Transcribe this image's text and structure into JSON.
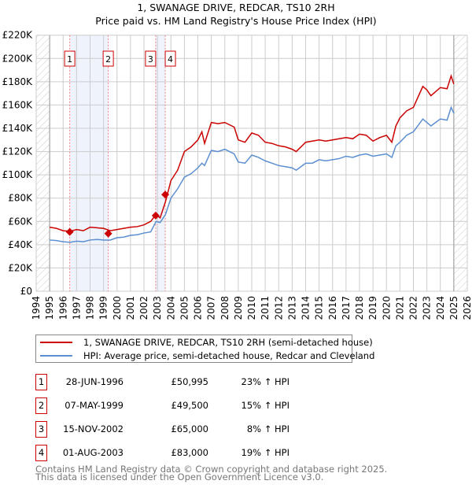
{
  "chart_data": {
    "type": "line",
    "title": "1, SWANAGE DRIVE, REDCAR, TS10 2RH",
    "subtitle": "Price paid vs. HM Land Registry's House Price Index (HPI)",
    "xlim": [
      1994,
      2026
    ],
    "ylim": [
      0,
      220000
    ],
    "x_ticks": [
      "1994",
      "1995",
      "1996",
      "1997",
      "1998",
      "1999",
      "2000",
      "2001",
      "2002",
      "2003",
      "2004",
      "2005",
      "2006",
      "2007",
      "2008",
      "2009",
      "2010",
      "2011",
      "2012",
      "2013",
      "2014",
      "2015",
      "2016",
      "2017",
      "2018",
      "2019",
      "2020",
      "2021",
      "2022",
      "2023",
      "2024",
      "2025",
      "2026"
    ],
    "y_ticks": [
      {
        "v": 0,
        "label": "£0"
      },
      {
        "v": 20000,
        "label": "£20K"
      },
      {
        "v": 40000,
        "label": "£40K"
      },
      {
        "v": 60000,
        "label": "£60K"
      },
      {
        "v": 80000,
        "label": "£80K"
      },
      {
        "v": 100000,
        "label": "£100K"
      },
      {
        "v": 120000,
        "label": "£120K"
      },
      {
        "v": 140000,
        "label": "£140K"
      },
      {
        "v": 160000,
        "label": "£160K"
      },
      {
        "v": 180000,
        "label": "£180K"
      },
      {
        "v": 200000,
        "label": "£200K"
      },
      {
        "v": 220000,
        "label": "£220K"
      }
    ],
    "grid": true,
    "data_range": [
      1995,
      2025
    ],
    "series": [
      {
        "name": "1, SWANAGE DRIVE, REDCAR, TS10 2RH (semi-detached house)",
        "color": "#cc0000",
        "x": [
          1995,
          1995.5,
          1996,
          1996.5,
          1997,
          1997.5,
          1998,
          1998.5,
          1999,
          1999.5,
          2000,
          2000.5,
          2001,
          2001.5,
          2002,
          2002.5,
          2002.9,
          2003.2,
          2003.6,
          2004,
          2004.5,
          2005,
          2005.5,
          2006,
          2006.3,
          2006.5,
          2007,
          2007.5,
          2008,
          2008.7,
          2009,
          2009.5,
          2010,
          2010.5,
          2011,
          2011.5,
          2012,
          2012.5,
          2013,
          2013.3,
          2014,
          2014.5,
          2015,
          2015.5,
          2016,
          2016.5,
          2017,
          2017.5,
          2018,
          2018.5,
          2019,
          2019.5,
          2020,
          2020.4,
          2020.7,
          2021,
          2021.5,
          2022,
          2022.7,
          2023,
          2023.3,
          2024,
          2024.5,
          2024.8,
          2025
        ],
        "y": [
          55000,
          54000,
          52000,
          51500,
          53000,
          52000,
          55000,
          54500,
          54000,
          52000,
          53000,
          54000,
          55000,
          55500,
          57000,
          60000,
          66000,
          63000,
          77000,
          95000,
          104000,
          120000,
          124000,
          130000,
          137000,
          127000,
          145000,
          144000,
          145000,
          141000,
          130000,
          128000,
          136000,
          134000,
          128000,
          127000,
          125000,
          124000,
          122000,
          120000,
          128000,
          129000,
          130000,
          129000,
          130000,
          131000,
          132000,
          131000,
          135000,
          134000,
          129000,
          132000,
          134000,
          128000,
          142000,
          149000,
          155000,
          158000,
          176000,
          173000,
          168000,
          175000,
          174000,
          185000,
          178000
        ]
      },
      {
        "name": "HPI: Average price, semi-detached house, Redcar and Cleveland",
        "color": "#5b8fd0",
        "x": [
          1995,
          1995.5,
          1996,
          1996.5,
          1997,
          1997.5,
          1998,
          1998.5,
          1999,
          1999.5,
          2000,
          2000.5,
          2001,
          2001.5,
          2002,
          2002.5,
          2002.9,
          2003.2,
          2003.6,
          2004,
          2004.5,
          2005,
          2005.5,
          2006,
          2006.3,
          2006.5,
          2007,
          2007.5,
          2008,
          2008.7,
          2009,
          2009.5,
          2010,
          2010.5,
          2011,
          2011.5,
          2012,
          2012.5,
          2013,
          2013.3,
          2014,
          2014.5,
          2015,
          2015.5,
          2016,
          2016.5,
          2017,
          2017.5,
          2018,
          2018.5,
          2019,
          2019.5,
          2020,
          2020.4,
          2020.7,
          2021,
          2021.5,
          2022,
          2022.7,
          2023,
          2023.3,
          2024,
          2024.5,
          2024.8,
          2025
        ],
        "y": [
          44000,
          43500,
          42500,
          42000,
          43000,
          42500,
          44000,
          44500,
          44000,
          44000,
          46000,
          46500,
          48000,
          48500,
          50000,
          51000,
          60000,
          59000,
          66000,
          80000,
          88000,
          98000,
          101000,
          106000,
          110000,
          108000,
          121000,
          120000,
          122000,
          118000,
          111000,
          110000,
          117000,
          115000,
          112000,
          110000,
          108000,
          107000,
          106000,
          104000,
          110000,
          110000,
          113000,
          112000,
          113000,
          114000,
          116000,
          115000,
          117000,
          118000,
          116000,
          117000,
          118000,
          115000,
          125000,
          128000,
          134000,
          137000,
          148000,
          145000,
          142000,
          148000,
          147000,
          158000,
          153000
        ]
      }
    ],
    "sales": [
      {
        "n": "1",
        "x": 1996.49,
        "price": 50995
      },
      {
        "n": "2",
        "x": 1999.35,
        "price": 49500
      },
      {
        "n": "3",
        "x": 2002.87,
        "price": 65000
      },
      {
        "n": "4",
        "x": 2003.58,
        "price": 83000
      }
    ],
    "shaded_ranges": [
      [
        1996.49,
        1999.35
      ],
      [
        2002.87,
        2003.58
      ]
    ]
  },
  "legend": {
    "red_label": "1, SWANAGE DRIVE, REDCAR, TS10 2RH (semi-detached house)",
    "blue_label": "HPI: Average price, semi-detached house, Redcar and Cleveland"
  },
  "transactions": [
    {
      "n": "1",
      "date": "28-JUN-1996",
      "price": "£50,995",
      "hpi": "23% ↑ HPI"
    },
    {
      "n": "2",
      "date": "07-MAY-1999",
      "price": "£49,500",
      "hpi": "15% ↑ HPI"
    },
    {
      "n": "3",
      "date": "15-NOV-2002",
      "price": "£65,000",
      "hpi": "8% ↑ HPI"
    },
    {
      "n": "4",
      "date": "01-AUG-2003",
      "price": "£83,000",
      "hpi": "19% ↑ HPI"
    }
  ],
  "footer": {
    "line1": "Contains HM Land Registry data © Crown copyright and database right 2025.",
    "line2": "This data is licensed under the Open Government Licence v3.0."
  }
}
